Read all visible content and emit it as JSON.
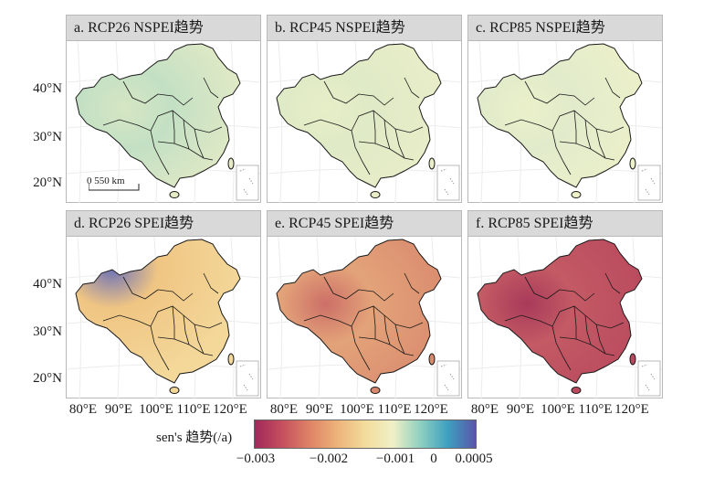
{
  "panels": [
    {
      "title": "a. RCP26 NSPEI趋势",
      "fill": "#e6ebc6",
      "accent": "#c3e0c4",
      "accent2": "#d6e6c3"
    },
    {
      "title": "b. RCP45 NSPEI趋势",
      "fill": "#eaeec8",
      "accent": "#dfeac6",
      "accent2": "#e6eec7"
    },
    {
      "title": "c. RCP85 NSPEI趋势",
      "fill": "#eef1ca",
      "accent": "#e1ebcb",
      "accent2": "#eaf0c9"
    },
    {
      "title": "d. RCP26 SPEI趋势",
      "fill": "#f3d89a",
      "accent": "#f0c583",
      "accent2": "#6d72b8"
    },
    {
      "title": "e. RCP45 SPEI趋势",
      "fill": "#d98a6e",
      "accent": "#e3a379",
      "accent2": "#cc6f67"
    },
    {
      "title": "f. RCP85 SPEI趋势",
      "fill": "#b9495e",
      "accent": "#c35a64",
      "accent2": "#a83a5a"
    }
  ],
  "axes": {
    "y_labels": [
      "40°N",
      "30°N",
      "20°N"
    ],
    "x_labels": [
      "80°E",
      "90°E",
      "100°E",
      "110°E",
      "120°E"
    ]
  },
  "scalebar": {
    "label": "0 550 km"
  },
  "legend": {
    "title": "sen's 趋势(/a)",
    "ticks": [
      "−0.003",
      "−0.002",
      "−0.001",
      "0",
      "0.0005"
    ],
    "colors": [
      "#a0285a",
      "#c64f5e",
      "#df8466",
      "#edb37a",
      "#f2dc9c",
      "#f0f0c6",
      "#8ed0c0",
      "#3d9fc0",
      "#5a55a8"
    ]
  }
}
